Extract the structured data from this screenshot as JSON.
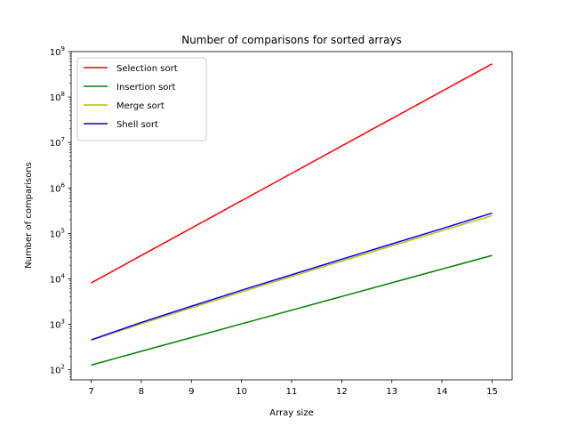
{
  "chart_data": {
    "type": "line",
    "title": "Number of comparisons for sorted arrays",
    "xlabel": "Array size",
    "ylabel": "Number of comparisons",
    "x": [
      7,
      8,
      9,
      10,
      11,
      12,
      13,
      14,
      15
    ],
    "xlim": [
      6.6,
      15.4
    ],
    "ylim": [
      60,
      1000000000
    ],
    "yscale": "log",
    "x_ticks": [
      "7",
      "8",
      "9",
      "10",
      "11",
      "12",
      "13",
      "14",
      "15"
    ],
    "y_ticks": [
      {
        "value": 100,
        "base": "10",
        "exp": "2"
      },
      {
        "value": 1000,
        "base": "10",
        "exp": "3"
      },
      {
        "value": 10000,
        "base": "10",
        "exp": "4"
      },
      {
        "value": 100000,
        "base": "10",
        "exp": "5"
      },
      {
        "value": 1000000,
        "base": "10",
        "exp": "6"
      },
      {
        "value": 10000000,
        "base": "10",
        "exp": "7"
      },
      {
        "value": 100000000,
        "base": "10",
        "exp": "8"
      },
      {
        "value": 1000000000,
        "base": "10",
        "exp": "9"
      }
    ],
    "grid": false,
    "legend_position": "top-left",
    "series": [
      {
        "name": "Selection sort",
        "color": "#ff0000",
        "values": [
          8128,
          32640,
          130816,
          523776,
          2096128,
          8386560,
          33550336,
          134209536,
          536854528
        ]
      },
      {
        "name": "Insertion sort",
        "color": "#008000",
        "values": [
          127,
          255,
          511,
          1023,
          2047,
          4095,
          8191,
          16383,
          32767
        ]
      },
      {
        "name": "Merge sort",
        "color": "#bfbf00",
        "values": [
          448,
          1024,
          2304,
          5120,
          11264,
          24576,
          53248,
          114688,
          245760
        ]
      },
      {
        "name": "Shell sort",
        "color": "#0000ff",
        "values": [
          455,
          1100,
          2500,
          5600,
          12300,
          27000,
          58600,
          127000,
          280000
        ]
      }
    ]
  }
}
